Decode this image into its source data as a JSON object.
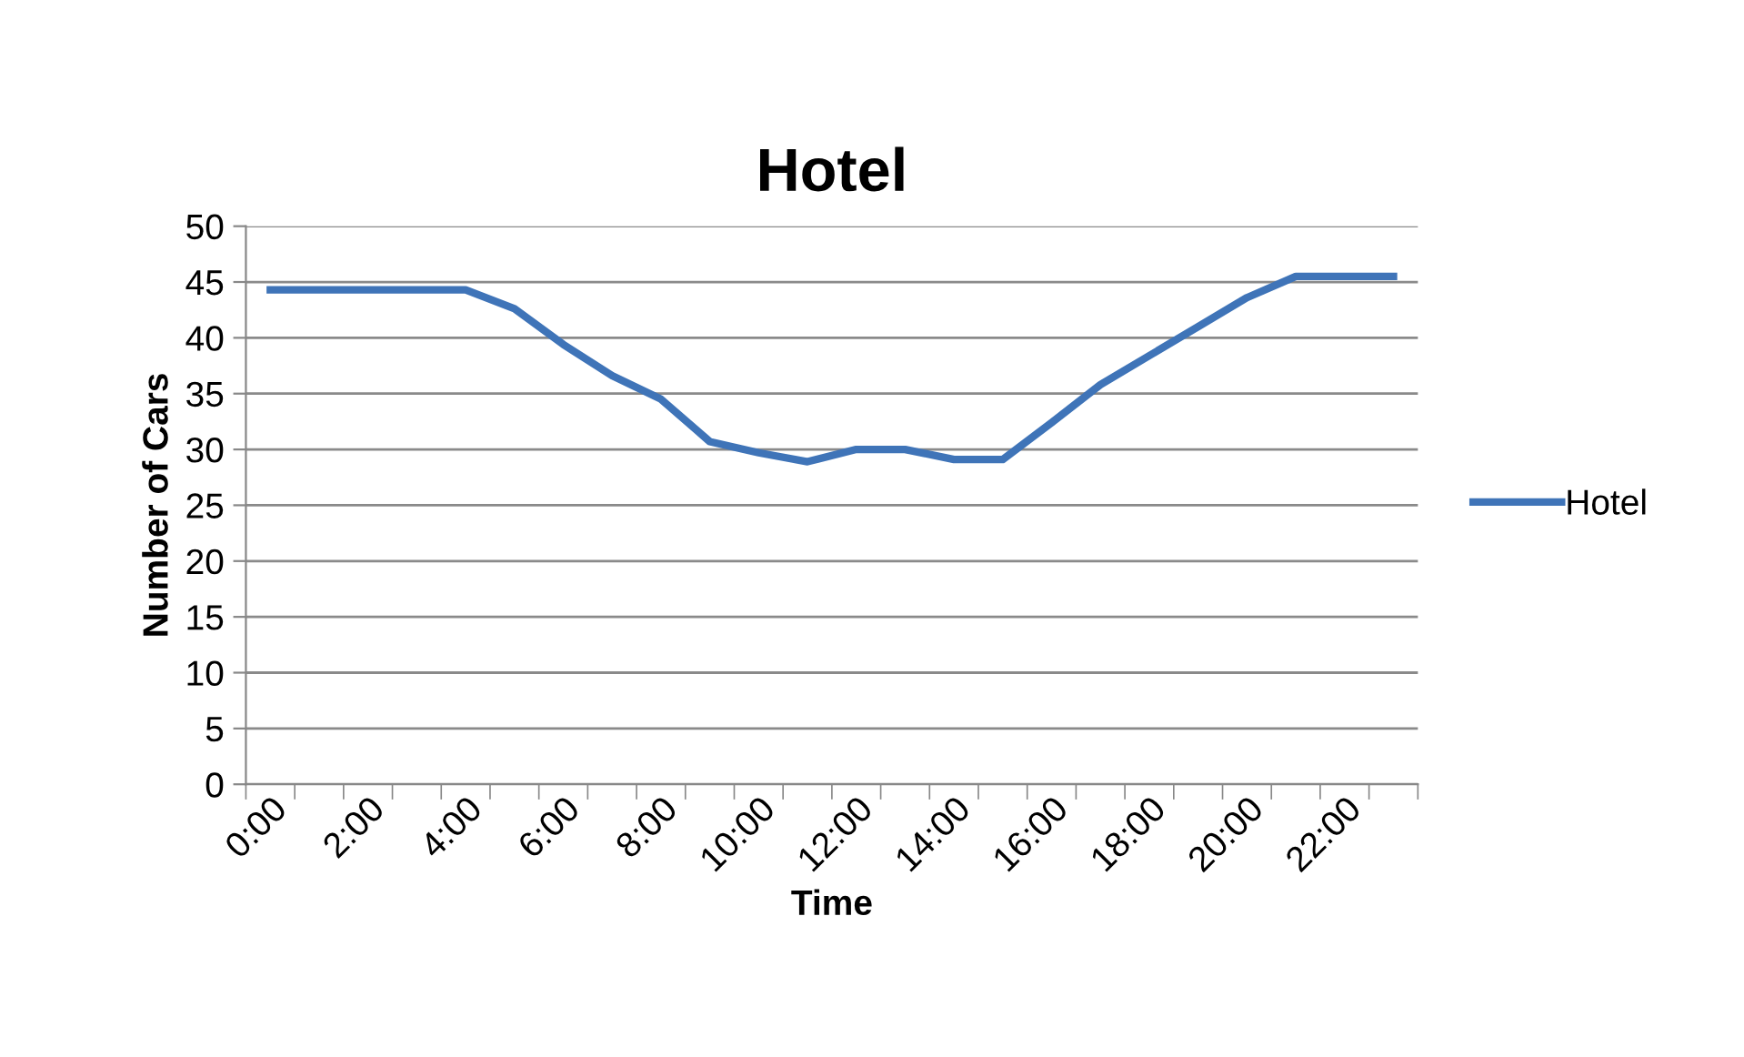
{
  "chart_data": {
    "type": "line",
    "title": "Hotel",
    "xlabel": "Time",
    "ylabel": "Number of Cars",
    "categories": [
      "0:00",
      null,
      "2:00",
      null,
      "4:00",
      null,
      "6:00",
      null,
      "8:00",
      null,
      "10:00",
      null,
      "12:00",
      null,
      "14:00",
      null,
      "16:00",
      null,
      "18:00",
      null,
      "20:00",
      null,
      "22:00",
      null
    ],
    "series": [
      {
        "name": "Hotel",
        "color": "#3f74b8",
        "values": [
          44.3,
          44.3,
          44.3,
          44.3,
          44.3,
          42.6,
          39.4,
          36.6,
          34.5,
          30.7,
          29.7,
          28.9,
          30.0,
          30.0,
          29.1,
          29.1,
          32.4,
          35.8,
          38.4,
          41.0,
          43.6,
          45.5,
          45.5,
          45.5
        ]
      }
    ],
    "ylim": [
      0,
      50
    ],
    "yticks": [
      0,
      5,
      10,
      15,
      20,
      25,
      30,
      35,
      40,
      45,
      50
    ],
    "grid": "y",
    "legend": "right",
    "marker": "none",
    "line_style": "solid"
  }
}
